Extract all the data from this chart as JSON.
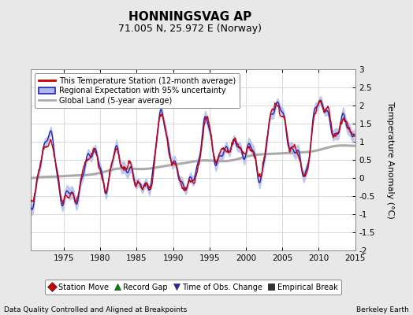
{
  "title": "HONNINGSVAG AP",
  "subtitle": "71.005 N, 25.972 E (Norway)",
  "ylabel": "Temperature Anomaly (°C)",
  "xlabel_bottom_left": "Data Quality Controlled and Aligned at Breakpoints",
  "xlabel_bottom_right": "Berkeley Earth",
  "xlim": [
    1970.5,
    2015.0
  ],
  "ylim": [
    -2.0,
    3.0
  ],
  "yticks": [
    -2,
    -1.5,
    -1,
    -0.5,
    0,
    0.5,
    1,
    1.5,
    2,
    2.5,
    3
  ],
  "xticks": [
    1975,
    1980,
    1985,
    1990,
    1995,
    2000,
    2005,
    2010,
    2015
  ],
  "bg_color": "#e8e8e8",
  "plot_bg_color": "#ffffff",
  "grid_color": "#cccccc",
  "red_line_color": "#cc0000",
  "blue_line_color": "#2222bb",
  "blue_fill_color": "#b0b8e8",
  "gray_line_color": "#aaaaaa",
  "legend1_labels": [
    "This Temperature Station (12-month average)",
    "Regional Expectation with 95% uncertainty",
    "Global Land (5-year average)"
  ],
  "legend2_labels": [
    "Station Move",
    "Record Gap",
    "Time of Obs. Change",
    "Empirical Break"
  ],
  "legend2_colors": [
    "#cc0000",
    "#008800",
    "#2222bb",
    "#333333"
  ],
  "legend2_markers": [
    "D",
    "^",
    "v",
    "s"
  ],
  "title_fontsize": 11,
  "subtitle_fontsize": 9,
  "tick_fontsize": 7.5,
  "ylabel_fontsize": 8
}
